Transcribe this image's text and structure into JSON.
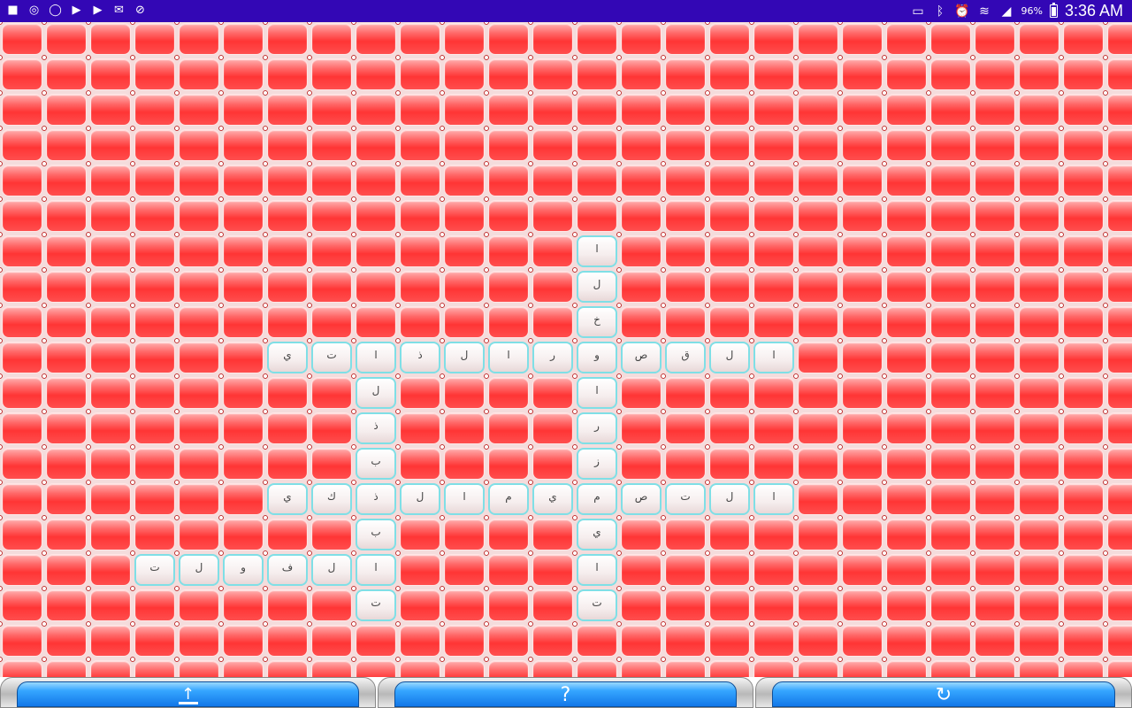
{
  "status_bar": {
    "left_icons": [
      "video-camera-icon",
      "messenger-icon",
      "whatsapp-icon",
      "youtube-icon",
      "youtube-icon",
      "gmail-icon",
      "compass-icon"
    ],
    "right_icons": [
      "cast-icon",
      "bluetooth-icon",
      "alarm-icon",
      "wifi-icon",
      "signal-icon"
    ],
    "battery": "96%",
    "time": "3:36 AM",
    "background_color": "#3307b5"
  },
  "board": {
    "columns": 26,
    "rows": 19,
    "blank_tile_color": "#ff4040",
    "letter_tile_border_color": "#7fdfe6",
    "words": [
      {
        "row": 6,
        "col": 13,
        "direction": "down",
        "text": "الخوارزميات"
      },
      {
        "row": 9,
        "col": 17,
        "direction": "left",
        "text": "القصورالذاتي"
      },
      {
        "row": 9,
        "col": 8,
        "direction": "down",
        "text": "الذبذبات"
      },
      {
        "row": 13,
        "col": 17,
        "direction": "left",
        "text": "التصميمالذكي"
      },
      {
        "row": 15,
        "col": 8,
        "direction": "left",
        "text": "الفولت"
      }
    ]
  },
  "toolbar": {
    "buttons": [
      {
        "name": "share-button",
        "icon": "share-icon",
        "glyph": ""
      },
      {
        "name": "hint-button",
        "icon": "question-icon",
        "glyph": "?"
      },
      {
        "name": "refresh-button",
        "icon": "refresh-icon",
        "glyph": "↻"
      }
    ]
  }
}
